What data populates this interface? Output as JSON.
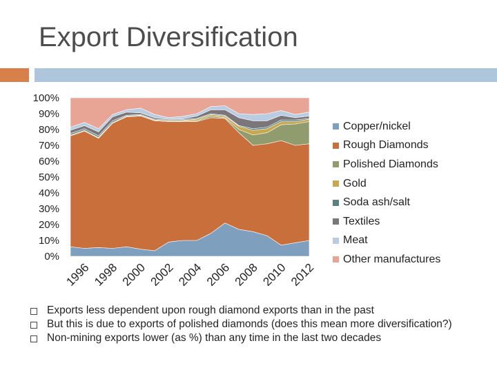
{
  "slide": {
    "title": "Export Diversification",
    "bullets": [
      "Exports less dependent upon rough diamond exports than in the past",
      "But this is due to exports of polished diamonds (does this mean more diversification?)",
      "Non-mining exports lower (as %) than any time in the last two decades"
    ]
  },
  "chart_data": {
    "type": "area",
    "stacked": true,
    "normalized": true,
    "x": [
      1996,
      1997,
      1998,
      1999,
      2000,
      2001,
      2002,
      2003,
      2004,
      2005,
      2006,
      2007,
      2008,
      2009,
      2010,
      2011,
      2012,
      2013
    ],
    "x_tick_labels": [
      "1996",
      "1998",
      "2000",
      "2002",
      "2004",
      "2006",
      "2008",
      "2010",
      "2012"
    ],
    "y_tick_labels": [
      "0%",
      "10%",
      "20%",
      "30%",
      "40%",
      "50%",
      "60%",
      "70%",
      "80%",
      "90%",
      "100%"
    ],
    "ylim": [
      0,
      100
    ],
    "legend_position": "right",
    "series": [
      {
        "name": "Copper/nickel",
        "color": "#7f9fbf",
        "values": [
          6,
          5,
          5.5,
          5,
          6,
          4.5,
          3.5,
          9,
          10,
          10,
          14.5,
          21,
          17,
          15.5,
          13,
          7,
          8.5,
          10
        ]
      },
      {
        "name": "Rough Diamonds",
        "color": "#c86f3c",
        "values": [
          70,
          74,
          69,
          79,
          82,
          84,
          82,
          76,
          75,
          75,
          73,
          66,
          61,
          54.5,
          58,
          66,
          61.5,
          61
        ]
      },
      {
        "name": "Polished Diamonds",
        "color": "#909c6d",
        "values": [
          0,
          0,
          0,
          0,
          0,
          0,
          0,
          0,
          0.3,
          0.5,
          1,
          0.5,
          2,
          6.5,
          7,
          10,
          13.5,
          14
        ]
      },
      {
        "name": "Gold",
        "color": "#c8a84e",
        "values": [
          0.5,
          0.5,
          0.5,
          0.5,
          0.5,
          0.5,
          0.5,
          0.5,
          0.5,
          1,
          1,
          1,
          2,
          3,
          2.5,
          2,
          1.5,
          1.5
        ]
      },
      {
        "name": "Soda ash/salt",
        "color": "#5a8082",
        "values": [
          1,
          1,
          1,
          1,
          0.5,
          0.5,
          0.5,
          0.5,
          0.5,
          0.5,
          0.5,
          0.5,
          0.5,
          1,
          1,
          1,
          1,
          0.5
        ]
      },
      {
        "name": "Textiles",
        "color": "#7a767a",
        "values": [
          2,
          2,
          2.5,
          2.5,
          2,
          1,
          1,
          0.5,
          0.5,
          1.5,
          2.5,
          3.5,
          5,
          5,
          4,
          3,
          1.5,
          1.5
        ]
      },
      {
        "name": "Meat",
        "color": "#b8cce2",
        "values": [
          2,
          2,
          2,
          1.5,
          1.5,
          3,
          2,
          1,
          1.5,
          1.5,
          2,
          2.5,
          2.5,
          4,
          4.5,
          3,
          2,
          2.5
        ]
      },
      {
        "name": "Other manufactures",
        "color": "#e8a595",
        "values": [
          18.5,
          15.5,
          19.5,
          10.5,
          7.5,
          6.5,
          10.5,
          12.5,
          11.7,
          10,
          5.5,
          5,
          10,
          10.5,
          10,
          8,
          10.5,
          9
        ]
      }
    ]
  }
}
